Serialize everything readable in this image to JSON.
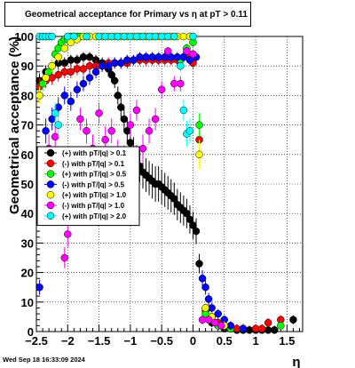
{
  "chart_data": {
    "type": "scatter",
    "title": "Geometrical acceptance for Primary vs   η at pT > 0.11",
    "xlabel": "η",
    "ylabel": "Geometrical acceptance (%)",
    "xlim": [
      -2.5,
      1.75
    ],
    "ylim": [
      0,
      100
    ],
    "grid": true,
    "legend_position": "left-middle",
    "x_ticks": [
      "−2.5",
      "−2",
      "−1.5",
      "−1",
      "−0.5",
      "0",
      "0.5",
      "1",
      "1.5"
    ],
    "x_tick_values": [
      -2.5,
      -2,
      -1.5,
      -1,
      -0.5,
      0,
      0.5,
      1,
      1.5
    ],
    "y_ticks": [
      "0",
      "10",
      "20",
      "30",
      "40",
      "50",
      "60",
      "70",
      "80",
      "90",
      "100"
    ],
    "y_tick_values": [
      0,
      10,
      20,
      30,
      40,
      50,
      60,
      70,
      80,
      90,
      100
    ],
    "series": [
      {
        "name": "(+) with pT/|q| > 0.1",
        "color": "#000000",
        "x": [
          -2.45,
          -2.35,
          -2.25,
          -2.15,
          -2.05,
          -1.95,
          -1.85,
          -1.75,
          -1.65,
          -1.55,
          -1.45,
          -1.35,
          -1.3,
          -1.25,
          -1.2,
          -1.15,
          -1.1,
          -1.05,
          -1.0,
          -0.95,
          -0.9,
          -0.85,
          -0.8,
          -0.75,
          -0.7,
          -0.65,
          -0.6,
          -0.55,
          -0.5,
          -0.45,
          -0.4,
          -0.35,
          -0.3,
          -0.25,
          -0.2,
          -0.15,
          -0.1,
          -0.05,
          0.0,
          0.05,
          0.1,
          0.2,
          0.3,
          0.4,
          0.5,
          0.6,
          0.7,
          0.8,
          0.9,
          1.0,
          1.1,
          1.2,
          1.3,
          1.6
        ],
        "y": [
          85,
          88,
          90,
          91,
          91,
          92,
          92,
          93,
          93,
          92,
          91,
          89,
          87,
          85,
          80,
          76,
          72,
          68,
          64,
          61,
          58,
          56,
          54,
          53,
          52,
          51,
          50,
          50,
          49,
          48,
          47,
          46,
          45,
          43,
          42,
          41,
          40,
          38,
          36,
          34,
          23,
          8,
          3,
          2,
          1,
          1,
          0.5,
          0.5,
          0.5,
          0.5,
          0.5,
          0.5,
          0.5,
          4
        ]
      },
      {
        "name": "(-) with pT/|q| > 0.1",
        "color": "#ff0000",
        "x": [
          -2.45,
          -2.35,
          -2.25,
          -2.15,
          -2.05,
          -1.95,
          -1.85,
          -1.75,
          -1.65,
          -1.55,
          -1.45,
          -1.35,
          -1.25,
          -1.15,
          -1.05,
          -0.95,
          -0.85,
          -0.75,
          -0.65,
          -0.55,
          -0.45,
          -0.35,
          -0.25,
          -0.15,
          -0.05,
          0.0,
          0.1,
          0.2,
          0.3,
          0.4,
          0.5,
          0.6,
          0.7,
          0.8,
          1.0,
          1.1,
          1.2,
          1.4
        ],
        "y": [
          83,
          85,
          86,
          87,
          88,
          88,
          89,
          89,
          90,
          90,
          90,
          91,
          91,
          91,
          91,
          92,
          92,
          92,
          92,
          92,
          92,
          92,
          92,
          93,
          93,
          91,
          65,
          7,
          5,
          3,
          2,
          1,
          1,
          1,
          1,
          1,
          3,
          4
        ]
      },
      {
        "name": "(+) with pT/|q| > 0.5",
        "color": "#00ff00",
        "x": [
          -2.45,
          -2.4,
          -2.35,
          -2.3,
          -2.25,
          -2.2,
          -2.15,
          -2.1,
          -2.05,
          -2.0,
          -1.95,
          -1.9,
          -1.85,
          -1.8,
          -0.2,
          -0.1,
          0.0,
          0.1,
          0.2,
          0.3,
          0.4,
          0.6,
          1.4
        ],
        "y": [
          80,
          84,
          86,
          88,
          90,
          94,
          96,
          98,
          99,
          99,
          100,
          100,
          100,
          100,
          92,
          96,
          98,
          70,
          6,
          4,
          2,
          1,
          2
        ]
      },
      {
        "name": "(-) with pT/|q| > 0.5",
        "color": "#0000ff",
        "x": [
          -2.45,
          -2.35,
          -2.25,
          -2.15,
          -2.05,
          -1.95,
          -1.85,
          -1.75,
          -1.65,
          -1.55,
          -1.45,
          -1.35,
          -1.25,
          -1.15,
          -1.05,
          -0.95,
          -0.85,
          -0.75,
          -0.65,
          -0.55,
          -0.45,
          -0.35,
          -0.25,
          -0.15,
          -0.05,
          0.05,
          0.15,
          0.2,
          0.25,
          0.3,
          0.4,
          0.5,
          0.6,
          0.8
        ],
        "y": [
          15,
          68,
          72,
          76,
          80,
          78,
          82,
          84,
          86,
          88,
          90,
          90,
          91,
          91,
          92,
          92,
          93,
          93,
          93,
          93,
          93,
          93,
          93,
          93,
          92,
          93,
          18,
          15,
          11,
          8,
          6,
          4,
          2,
          1
        ]
      },
      {
        "name": "(+) with pT/|q| > 1.0",
        "color": "#ffff00",
        "x": [
          -2.45,
          -2.35,
          -2.25,
          -2.15,
          -2.05,
          -1.95,
          -1.85,
          -1.75,
          -1.65,
          -1.55,
          -1.45,
          -1.35,
          -1.25,
          -1.15,
          -1.05,
          -0.95,
          -0.85,
          -0.75,
          -0.65,
          -0.55,
          -0.45,
          -0.35,
          -0.25,
          -0.15,
          -0.05,
          0.1,
          0.2,
          0.3,
          0.5
        ],
        "y": [
          80,
          86,
          90,
          93,
          96,
          98,
          99,
          100,
          100,
          100,
          100,
          100,
          100,
          100,
          100,
          100,
          100,
          100,
          100,
          100,
          100,
          100,
          100,
          100,
          100,
          60,
          8,
          5,
          2
        ]
      },
      {
        "name": "(-) with pT/|q| > 1.0",
        "color": "#ff00ff",
        "x": [
          -2.4,
          -2.3,
          -2.2,
          -2.1,
          -2.05,
          -2.0,
          -1.9,
          -1.8,
          -1.7,
          -1.6,
          -1.5,
          -1.4,
          -1.3,
          -1.2,
          -1.1,
          -1.0,
          -0.9,
          -0.8,
          -0.7,
          -0.6,
          -0.5,
          -0.4,
          -0.3,
          -0.2,
          -0.1,
          0.0,
          0.15,
          0.25,
          0.35,
          0.45
        ],
        "y": [
          48,
          62,
          66,
          52,
          25,
          33,
          55,
          72,
          68,
          62,
          74,
          65,
          68,
          60,
          58,
          70,
          75,
          62,
          68,
          72,
          82,
          95,
          84,
          84,
          95,
          94,
          4,
          4,
          3,
          2
        ]
      },
      {
        "name": "(+) with pT/|q| > 2.0",
        "color": "#00ffff",
        "x": [
          -2.45,
          -2.4,
          -2.35,
          -2.3,
          -2.25,
          -2.2,
          -2.15,
          -2.0,
          -1.9,
          -1.7,
          -1.5,
          -1.4,
          -1.3,
          -1.2,
          -1.1,
          -1.0,
          -0.9,
          -0.8,
          -0.7,
          -0.6,
          -0.5,
          -0.4,
          -0.3,
          -0.2,
          -0.15,
          -0.1,
          -0.05,
          0.0
        ],
        "y": [
          100,
          100,
          100,
          100,
          100,
          74,
          70,
          100,
          100,
          100,
          100,
          100,
          100,
          100,
          100,
          100,
          100,
          100,
          100,
          100,
          100,
          100,
          100,
          90,
          75,
          67,
          68,
          100
        ]
      }
    ]
  },
  "date_stamp": "Wed Sep 18 16:33:09 2024"
}
